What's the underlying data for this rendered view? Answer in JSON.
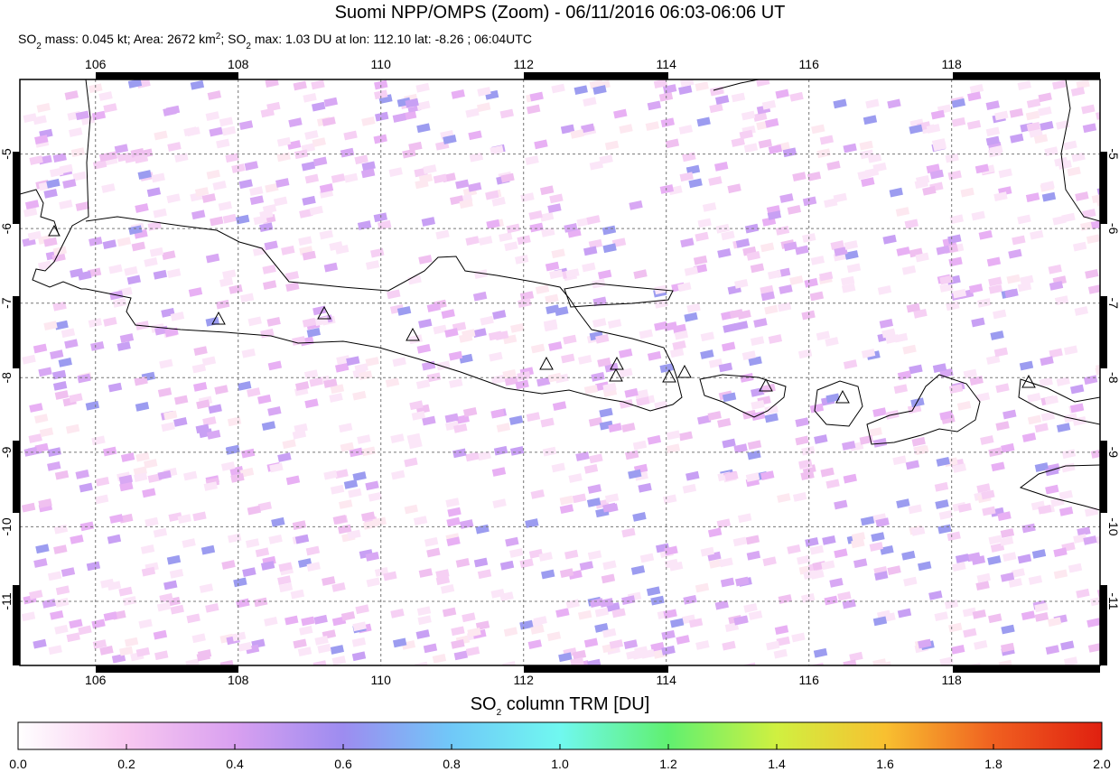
{
  "title": "Suomi NPP/OMPS (Zoom) - 06/11/2016 06:03-06:06 UT",
  "subtitle": [
    "SO",
    "2",
    " mass: 0.045 kt; Area: 2672 km",
    "2",
    "; SO",
    "2",
    " max: 1.03 DU at lon: 112.10 lat: -8.26 ; 06:04UTC"
  ],
  "map": {
    "xlim": [
      104.94,
      120.08
    ],
    "ylim": [
      -11.86,
      -4
    ],
    "xticks": [
      106,
      108,
      110,
      112,
      114,
      116,
      118
    ],
    "yticks": [
      -5,
      -6,
      -7,
      -8,
      -9,
      -10,
      -11
    ],
    "grid": true
  },
  "colorbar": {
    "label": [
      "SO",
      "2",
      " column TRM [DU]"
    ],
    "lim": [
      0,
      2
    ],
    "colors": [
      "#ffffff",
      "#f8c8f0",
      "#d9a0f0",
      "#9d8cf0",
      "#70c8f8",
      "#70f8f0",
      "#60f070",
      "#d0f040",
      "#f8c030",
      "#f06020",
      "#e02010"
    ],
    "ticks": [
      {
        "value": 0,
        "label": "0.0"
      },
      {
        "value": 0.2,
        "label": "0.2"
      },
      {
        "value": 0.4,
        "label": "0.4"
      },
      {
        "value": 0.6,
        "label": "0.6"
      },
      {
        "value": 0.8,
        "label": "0.8"
      },
      {
        "value": 1,
        "label": "1.0"
      },
      {
        "value": 1.2,
        "label": "1.2"
      },
      {
        "value": 1.4,
        "label": "1.4"
      },
      {
        "value": 1.6,
        "label": "1.6"
      },
      {
        "value": 1.8,
        "label": "1.8"
      },
      {
        "value": 2,
        "label": "2.0"
      }
    ]
  }
}
